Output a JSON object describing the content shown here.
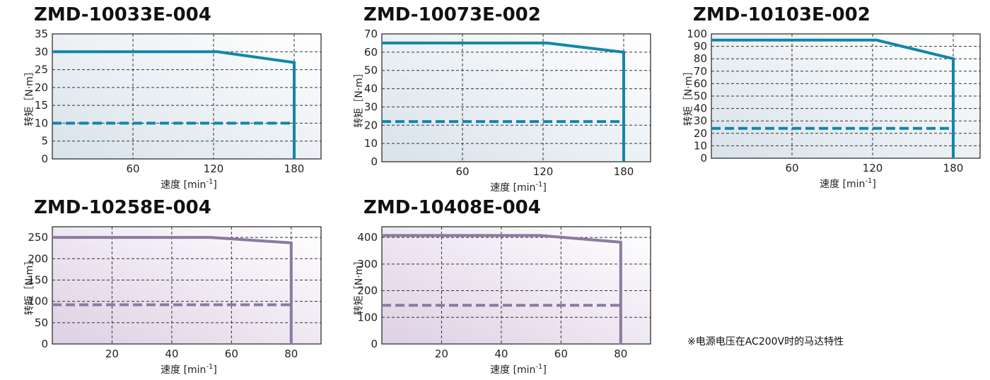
{
  "note": "※电源电压在AC200V时的马达特性",
  "colors": {
    "blue_line": "#1286a8",
    "purple_line": "#8a7aa0",
    "blue_bg_dark": "#d8e2ea",
    "purple_bg_dark": "#ddd0e4",
    "grid": "#333333",
    "frame": "#222222"
  },
  "chart_data": [
    {
      "type": "line",
      "title": "ZMD-10033E-004",
      "xlabel": "速度",
      "xunit_base": "[min",
      "xunit_sup": "-1",
      "xunit_close": "]",
      "ylabel": "转矩［N·m］",
      "xlim": [
        0,
        200
      ],
      "ylim": [
        0,
        35
      ],
      "xticks": [
        60,
        120,
        180
      ],
      "yticks": [
        0,
        5,
        10,
        15,
        20,
        25,
        30,
        35
      ],
      "theme": "blue",
      "series": [
        {
          "style": "solid",
          "x": [
            0,
            123,
            180,
            180
          ],
          "y": [
            30,
            30,
            27,
            0
          ]
        },
        {
          "style": "dashed",
          "x": [
            0,
            180
          ],
          "y": [
            10,
            10
          ]
        }
      ]
    },
    {
      "type": "line",
      "title": "ZMD-10073E-002",
      "xlabel": "速度",
      "xunit_base": "[min",
      "xunit_sup": "-1",
      "xunit_close": "]",
      "ylabel": "转矩［N·m］",
      "xlim": [
        0,
        200
      ],
      "ylim": [
        0,
        70
      ],
      "xticks": [
        60,
        120,
        180
      ],
      "yticks": [
        0,
        10,
        20,
        30,
        40,
        50,
        60,
        70
      ],
      "theme": "blue",
      "series": [
        {
          "style": "solid",
          "x": [
            0,
            123,
            180,
            180
          ],
          "y": [
            65,
            65,
            60,
            0
          ]
        },
        {
          "style": "dashed",
          "x": [
            0,
            180
          ],
          "y": [
            22,
            22
          ]
        }
      ]
    },
    {
      "type": "line",
      "title": "ZMD-10103E-002",
      "xlabel": "速度",
      "xunit_base": "[min",
      "xunit_sup": "-1",
      "xunit_close": "]",
      "ylabel": "转矩［N·m］",
      "xlim": [
        0,
        200
      ],
      "ylim": [
        0,
        100
      ],
      "xticks": [
        60,
        120,
        180
      ],
      "yticks": [
        0,
        10,
        20,
        30,
        40,
        50,
        60,
        70,
        80,
        90,
        100
      ],
      "theme": "blue",
      "series": [
        {
          "style": "solid",
          "x": [
            0,
            123,
            180,
            180
          ],
          "y": [
            95,
            95,
            80,
            0
          ]
        },
        {
          "style": "dashed",
          "x": [
            0,
            180
          ],
          "y": [
            24,
            24
          ]
        }
      ]
    },
    {
      "type": "line",
      "title": "ZMD-10258E-004",
      "xlabel": "速度",
      "xunit_base": "[min",
      "xunit_sup": "-1",
      "xunit_close": "]",
      "ylabel": "转矩［N·m］",
      "xlim": [
        0,
        90
      ],
      "ylim": [
        0,
        275
      ],
      "xticks": [
        20,
        40,
        60,
        80
      ],
      "yticks": [
        0,
        50,
        100,
        150,
        200,
        250
      ],
      "theme": "purple",
      "series": [
        {
          "style": "solid",
          "x": [
            0,
            53,
            80,
            80
          ],
          "y": [
            250,
            250,
            237,
            0
          ]
        },
        {
          "style": "dashed",
          "x": [
            0,
            80
          ],
          "y": [
            92,
            92
          ]
        }
      ]
    },
    {
      "type": "line",
      "title": "ZMD-10408E-004",
      "xlabel": "速度",
      "xunit_base": "[min",
      "xunit_sup": "-1",
      "xunit_close": "]",
      "ylabel": "转矩［N·m］",
      "xlim": [
        0,
        90
      ],
      "ylim": [
        0,
        440
      ],
      "xticks": [
        20,
        40,
        60,
        80
      ],
      "yticks": [
        0,
        100,
        200,
        300,
        400
      ],
      "theme": "purple",
      "series": [
        {
          "style": "solid",
          "x": [
            0,
            53,
            80,
            80
          ],
          "y": [
            407,
            407,
            382,
            0
          ]
        },
        {
          "style": "dashed",
          "x": [
            0,
            80
          ],
          "y": [
            145,
            145
          ]
        }
      ]
    }
  ]
}
